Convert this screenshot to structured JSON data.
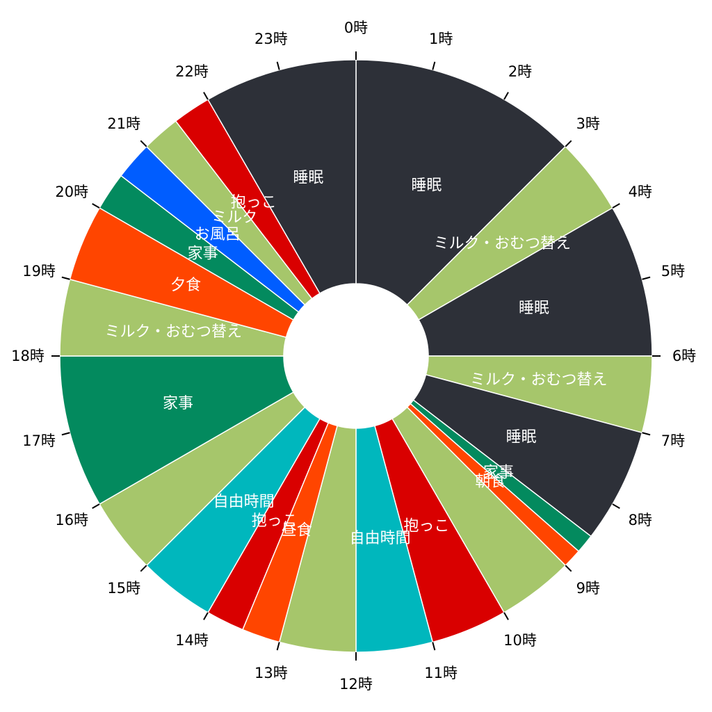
{
  "chart_data": {
    "type": "pie",
    "variant": "donut",
    "start_angle": "top",
    "direction": "clockwise",
    "hour_labels": [
      "0時",
      "1時",
      "2時",
      "3時",
      "4時",
      "5時",
      "6時",
      "7時",
      "8時",
      "9時",
      "10時",
      "11時",
      "12時",
      "13時",
      "14時",
      "15時",
      "16時",
      "17時",
      "18時",
      "19時",
      "20時",
      "21時",
      "22時",
      "23時"
    ],
    "segments": [
      {
        "label": "睡眠",
        "start": 0,
        "end": 3,
        "color": "#2d3038"
      },
      {
        "label": "ミルク・おむつ替え",
        "start": 3,
        "end": 4,
        "color": "#a6c66b"
      },
      {
        "label": "睡眠",
        "start": 4,
        "end": 6,
        "color": "#2d3038"
      },
      {
        "label": "ミルク・おむつ替え",
        "start": 6,
        "end": 7,
        "color": "#a6c66b"
      },
      {
        "label": "睡眠",
        "start": 7,
        "end": 8.5,
        "color": "#2d3038"
      },
      {
        "label": "家事",
        "start": 8.5,
        "end": 8.75,
        "color": "#038a5e"
      },
      {
        "label": "朝食",
        "start": 8.75,
        "end": 9,
        "color": "#ff4500"
      },
      {
        "label": "",
        "start": 9,
        "end": 10,
        "color": "#a6c66b"
      },
      {
        "label": "抱っこ",
        "start": 10,
        "end": 11,
        "color": "#d90000"
      },
      {
        "label": "自由時間",
        "start": 11,
        "end": 12,
        "color": "#00b7bd"
      },
      {
        "label": "",
        "start": 12,
        "end": 13,
        "color": "#a6c66b"
      },
      {
        "label": "昼食",
        "start": 13,
        "end": 13.5,
        "color": "#ff4500"
      },
      {
        "label": "抱っこ",
        "start": 13.5,
        "end": 14,
        "color": "#d90000"
      },
      {
        "label": "自由時間",
        "start": 14,
        "end": 15,
        "color": "#00b7bd"
      },
      {
        "label": "",
        "start": 15,
        "end": 16,
        "color": "#a6c66b"
      },
      {
        "label": "家事",
        "start": 16,
        "end": 18,
        "color": "#038a5e"
      },
      {
        "label": "ミルク・おむつ替え",
        "start": 18,
        "end": 19,
        "color": "#a6c66b"
      },
      {
        "label": "夕食",
        "start": 19,
        "end": 20,
        "color": "#ff4500"
      },
      {
        "label": "家事",
        "start": 20,
        "end": 20.5,
        "color": "#038a5e"
      },
      {
        "label": "お風呂",
        "start": 20.5,
        "end": 21,
        "color": "#005dff"
      },
      {
        "label": "ミルク",
        "start": 21,
        "end": 21.5,
        "color": "#a6c66b"
      },
      {
        "label": "抱っこ",
        "start": 21.5,
        "end": 22,
        "color": "#d90000"
      },
      {
        "label": "睡眠",
        "start": 22,
        "end": 24,
        "color": "#2d3038"
      }
    ]
  }
}
